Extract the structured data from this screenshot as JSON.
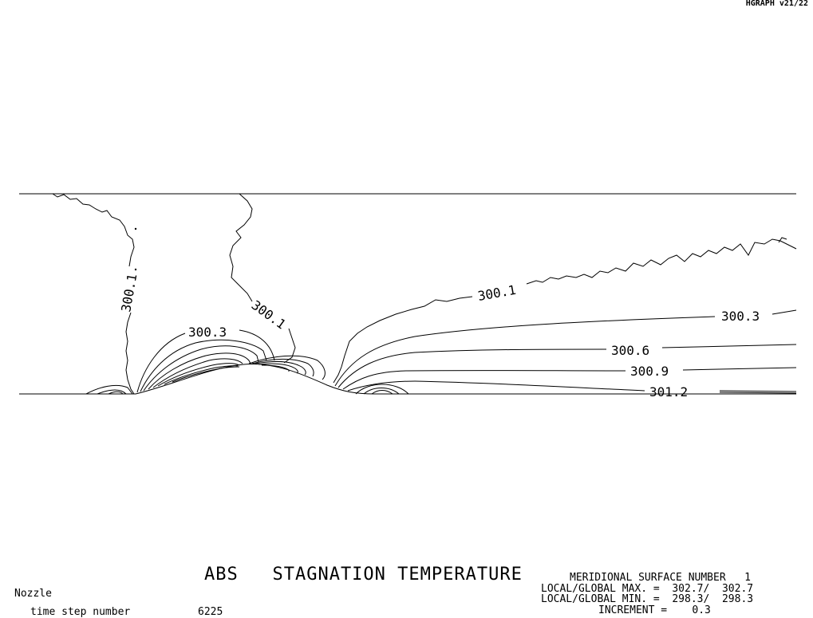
{
  "program_version": "HGRAPH v21/22",
  "plot_title": "ABS   STAGNATION TEMPERATURE",
  "case_name": "Nozzle",
  "time_step": {
    "label": "time step number",
    "value": "6225"
  },
  "info": {
    "surface": "MERIDIONAL SURFACE NUMBER   1",
    "local_global_max": "LOCAL/GLOBAL MAX. =  302.7/  302.7",
    "local_global_min": "LOCAL/GLOBAL MIN. =  298.3/  298.3",
    "increment": "INCREMENT =    0.3"
  },
  "contour_labels": [
    "300.1",
    "300.1",
    "300.3",
    "300.1",
    "300.3",
    "300.6",
    "300.9",
    "301.2"
  ],
  "colors": {
    "line": "#000000",
    "background": "#ffffff"
  }
}
